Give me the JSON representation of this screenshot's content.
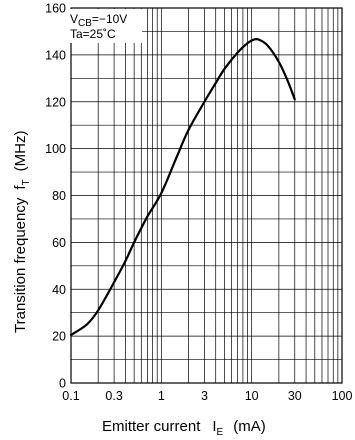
{
  "chart_data": {
    "type": "line",
    "x_scale": "log",
    "y_scale": "linear",
    "xlim": [
      0.1,
      100
    ],
    "ylim": [
      0,
      160
    ],
    "x_ticks": [
      0.1,
      0.3,
      1,
      3,
      10,
      30,
      100
    ],
    "x_tick_labels": [
      "0.1",
      "0.3",
      "1",
      "3",
      "10",
      "30",
      "100"
    ],
    "y_ticks": [
      0,
      20,
      40,
      60,
      80,
      100,
      120,
      140,
      160
    ],
    "y_tick_labels": [
      "0",
      "20",
      "40",
      "60",
      "80",
      "100",
      "120",
      "140",
      "160"
    ],
    "minor_y_step": 10,
    "grid": true,
    "xlabel": {
      "text": "Emitter current",
      "symbol": "I",
      "subscript": "E",
      "unit": "(mA)"
    },
    "ylabel": {
      "text": "Transition frequency",
      "symbol": "f",
      "subscript": "T",
      "unit": "(MHz)"
    },
    "conditions": {
      "line1": {
        "symbol": "V",
        "subscript": "CB",
        "value": "=−10V"
      },
      "line2": "Ta=25˚C",
      "placement": "top-left"
    },
    "series": [
      {
        "x": [
          0.1,
          0.15,
          0.2,
          0.3,
          0.4,
          0.5,
          0.7,
          1.0,
          1.5,
          2.0,
          3.0,
          4.0,
          5.0,
          7.0,
          9.0,
          10.5,
          12.0,
          15.0,
          20.0,
          25.0,
          30.0
        ],
        "y": [
          20.5,
          25,
          31,
          43,
          52,
          60,
          71,
          81,
          97,
          108,
          120,
          128,
          134,
          141,
          145,
          146.5,
          146.5,
          144,
          137,
          129,
          121
        ]
      }
    ],
    "line_color": "#000000"
  }
}
